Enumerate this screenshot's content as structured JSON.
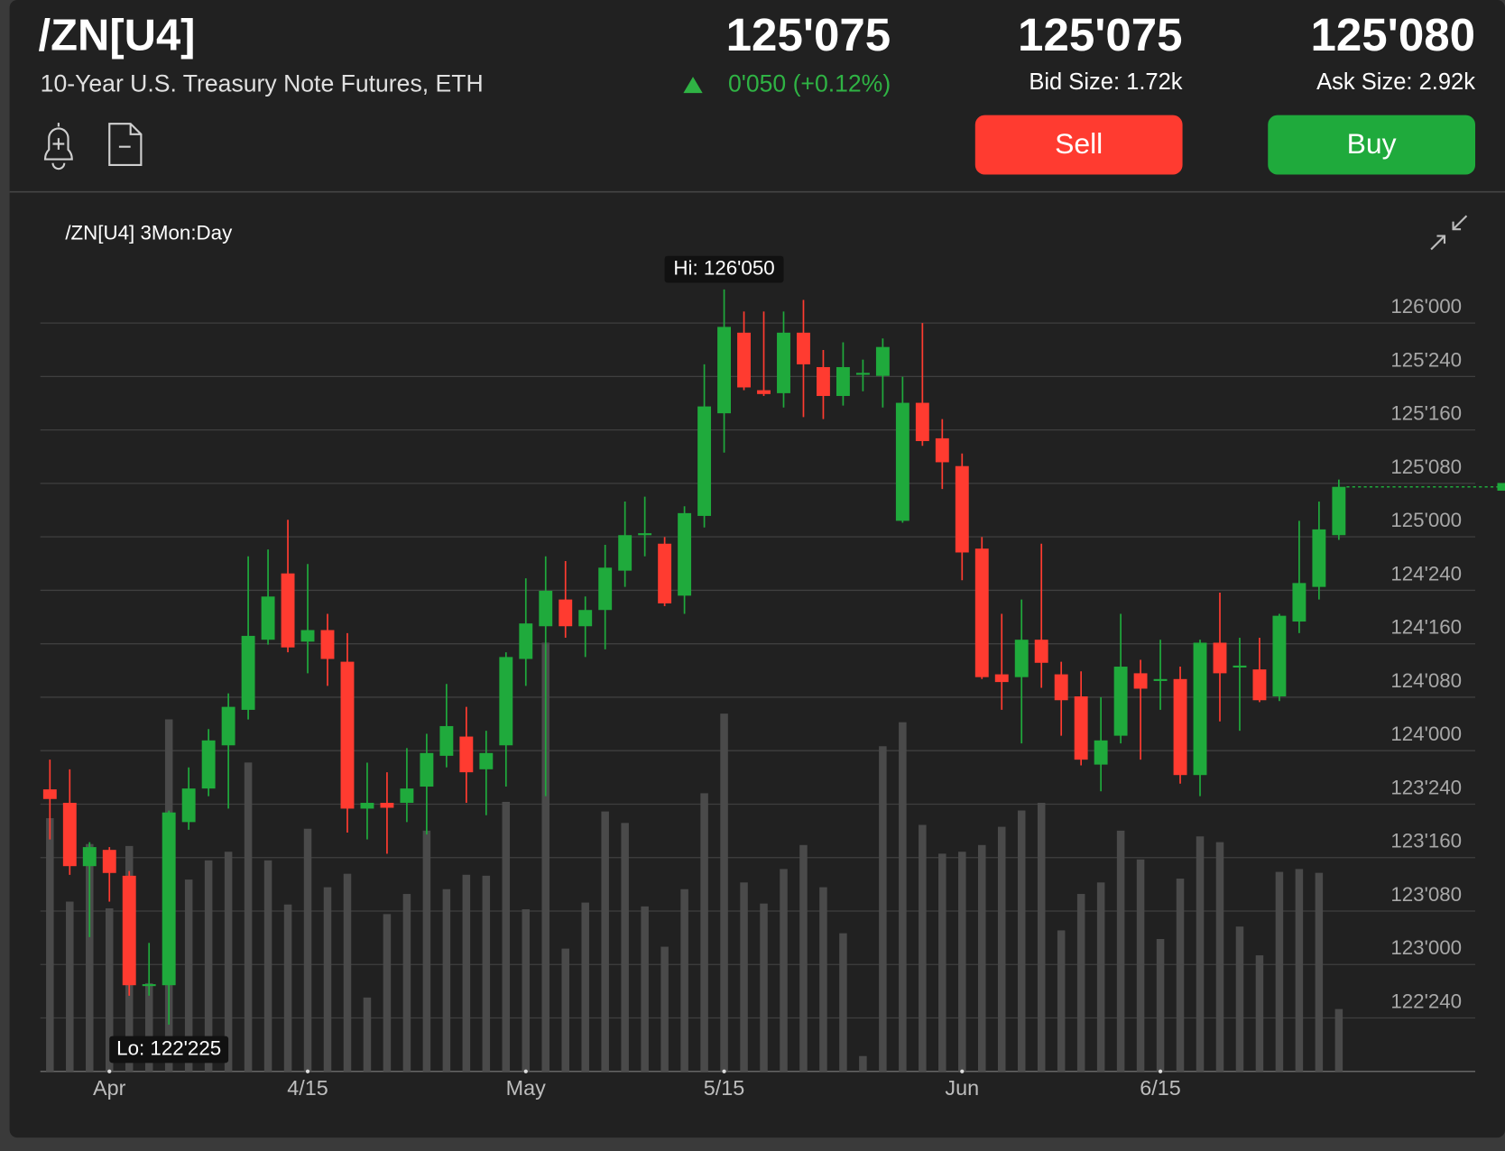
{
  "header": {
    "symbol": "/ZN[U4]",
    "description": "10-Year U.S. Treasury Note Futures, ETH",
    "last": "125'075",
    "change": "0'050 (+0.12%)",
    "bid": "125'075",
    "bid_size": "Bid Size: 1.72k",
    "ask": "125'080",
    "ask_size": "Ask Size: 2.92k",
    "sell": "Sell",
    "buy": "Buy"
  },
  "chart_data": {
    "type": "candlestick",
    "title": "/ZN[U4] 3Mon:Day",
    "hi_label": "Hi: 126'050",
    "lo_label": "Lo: 122'225",
    "up_color": "#1faa3c",
    "down_color": "#ff3b30",
    "volume_color": "#4a4a4a",
    "grid": true,
    "categories": [
      null,
      null,
      null,
      "Apr",
      null,
      null,
      null,
      null,
      null,
      null,
      null,
      null,
      null,
      "4/15",
      null,
      null,
      null,
      null,
      null,
      null,
      null,
      null,
      null,
      null,
      "May",
      null,
      null,
      null,
      null,
      null,
      null,
      null,
      null,
      null,
      "5/15",
      null,
      null,
      null,
      null,
      null,
      null,
      null,
      null,
      null,
      null,
      null,
      "Jun",
      null,
      null,
      null,
      null,
      null,
      null,
      null,
      null,
      null,
      "6/15",
      null,
      null,
      null,
      null,
      null,
      null,
      null,
      null,
      null
    ],
    "open": [
      123.819,
      123.756,
      123.46,
      123.536,
      123.415,
      122.899,
      122.903,
      123.666,
      123.823,
      124.025,
      124.191,
      124.519,
      124.829,
      124.51,
      124.564,
      124.416,
      123.729,
      123.756,
      123.756,
      123.832,
      123.976,
      124.066,
      123.913,
      124.025,
      124.429,
      124.582,
      124.707,
      124.582,
      124.658,
      124.842,
      125.008,
      124.968,
      124.725,
      125.098,
      125.578,
      125.955,
      125.686,
      125.672,
      125.955,
      125.794,
      125.659,
      125.758,
      125.753,
      125.075,
      125.627,
      125.461,
      125.331,
      124.945,
      124.357,
      124.344,
      124.519,
      124.357,
      124.254,
      123.935,
      124.07,
      124.362,
      124.326,
      124.335,
      123.886,
      124.505,
      124.389,
      124.38,
      124.254,
      124.604,
      124.766,
      125.008
    ],
    "high": [
      123.958,
      123.913,
      123.572,
      123.549,
      123.437,
      123.101,
      123.72,
      123.922,
      124.101,
      124.268,
      124.909,
      124.941,
      125.08,
      124.873,
      124.64,
      124.55,
      123.944,
      123.899,
      124.012,
      124.079,
      124.312,
      124.205,
      124.093,
      124.46,
      124.806,
      124.909,
      124.887,
      124.721,
      124.963,
      125.165,
      125.188,
      124.999,
      125.143,
      125.807,
      126.157,
      126.054,
      126.054,
      126.054,
      126.108,
      125.874,
      125.91,
      125.829,
      125.928,
      125.749,
      126.0,
      125.551,
      125.39,
      124.999,
      124.64,
      124.707,
      124.968,
      124.416,
      124.371,
      124.25,
      124.64,
      124.425,
      124.519,
      124.393,
      124.519,
      124.739,
      124.528,
      124.528,
      124.64,
      125.075,
      125.165,
      125.268
    ],
    "low": [
      123.585,
      123.419,
      123.128,
      123.294,
      122.854,
      122.854,
      122.719,
      123.63,
      123.787,
      123.729,
      124.146,
      124.496,
      124.46,
      124.362,
      124.303,
      123.617,
      123.585,
      123.518,
      123.666,
      123.608,
      123.922,
      123.756,
      123.698,
      123.832,
      124.303,
      123.787,
      124.528,
      124.438,
      124.474,
      124.766,
      124.909,
      124.676,
      124.64,
      125.044,
      125.394,
      125.686,
      125.659,
      125.605,
      125.56,
      125.551,
      125.614,
      125.681,
      125.605,
      125.066,
      125.426,
      125.224,
      124.797,
      124.335,
      124.191,
      124.034,
      124.294,
      124.07,
      123.931,
      123.81,
      124.034,
      123.958,
      124.191,
      123.846,
      123.787,
      124.137,
      124.093,
      124.227,
      124.232,
      124.55,
      124.707,
      124.986
    ],
    "close": [
      123.774,
      123.46,
      123.549,
      123.428,
      122.903,
      122.908,
      123.711,
      123.823,
      124.048,
      124.205,
      124.537,
      124.721,
      124.483,
      124.564,
      124.429,
      123.729,
      123.756,
      123.733,
      123.823,
      123.989,
      124.115,
      123.899,
      123.989,
      124.438,
      124.595,
      124.748,
      124.582,
      124.658,
      124.856,
      125.008,
      125.017,
      124.689,
      125.111,
      125.61,
      125.982,
      125.699,
      125.668,
      125.955,
      125.807,
      125.659,
      125.794,
      125.767,
      125.888,
      125.627,
      125.448,
      125.349,
      124.927,
      124.344,
      124.321,
      124.519,
      124.411,
      124.236,
      123.958,
      124.048,
      124.393,
      124.29,
      124.335,
      123.886,
      124.505,
      124.362,
      124.398,
      124.236,
      124.631,
      124.784,
      125.035,
      125.234
    ],
    "volume": [
      264,
      177,
      237,
      170,
      235,
      92,
      367,
      200,
      220,
      229,
      322,
      220,
      174,
      253,
      192,
      206,
      77,
      164,
      185,
      251,
      190,
      205,
      204,
      281,
      169,
      447,
      128,
      176,
      271,
      259,
      172,
      130,
      190,
      290,
      373,
      197,
      175,
      211,
      236,
      192,
      144,
      16,
      339,
      364,
      257,
      227,
      229,
      236,
      255,
      272,
      280,
      147,
      185,
      197,
      251,
      221,
      138,
      201,
      245,
      239,
      151,
      121,
      208,
      211,
      207,
      65
    ],
    "ylim": [
      122.5,
      126.21
    ],
    "yticks": [
      {
        "value": 126,
        "label": "126'000"
      },
      {
        "value": 125.75,
        "label": "125'240"
      },
      {
        "value": 125.5,
        "label": "125'160"
      },
      {
        "value": 125.25,
        "label": "125'080"
      },
      {
        "value": 125,
        "label": "125'000"
      },
      {
        "value": 124.75,
        "label": "124'240"
      },
      {
        "value": 124.5,
        "label": "124'160"
      },
      {
        "value": 124.25,
        "label": "124'080"
      },
      {
        "value": 124,
        "label": "124'000"
      },
      {
        "value": 123.75,
        "label": "123'240"
      },
      {
        "value": 123.5,
        "label": "123'160"
      },
      {
        "value": 123.25,
        "label": "123'080"
      },
      {
        "value": 123,
        "label": "123'000"
      },
      {
        "value": 122.75,
        "label": "122'240"
      }
    ]
  }
}
